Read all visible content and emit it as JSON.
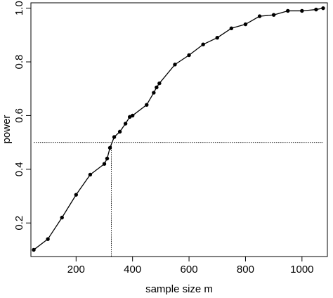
{
  "chart_data": {
    "type": "line",
    "title": "",
    "xlabel": "sample size m",
    "ylabel": "power",
    "xlim": [
      40,
      1090
    ],
    "ylim": [
      0.075,
      1.02
    ],
    "xticks": [
      200,
      400,
      600,
      800,
      1000
    ],
    "xtick_labels": [
      "200",
      "400",
      "600",
      "800",
      "1000"
    ],
    "yticks": [
      0.2,
      0.4,
      0.6,
      0.8,
      1.0
    ],
    "ytick_labels": [
      "0.2",
      "0.4",
      "0.6",
      "0.8",
      "1.0"
    ],
    "grid": false,
    "legend": "none",
    "series": [
      {
        "color": "#000000",
        "marker": "filled-circle",
        "x": [
          50,
          100,
          150,
          200,
          250,
          300,
          310,
          320,
          335,
          355,
          375,
          390,
          400,
          450,
          475,
          485,
          495,
          550,
          600,
          650,
          700,
          750,
          800,
          850,
          900,
          950,
          1000,
          1050,
          1075
        ],
        "y": [
          0.1,
          0.14,
          0.22,
          0.305,
          0.38,
          0.42,
          0.44,
          0.48,
          0.52,
          0.54,
          0.57,
          0.595,
          0.6,
          0.64,
          0.685,
          0.705,
          0.72,
          0.79,
          0.825,
          0.865,
          0.89,
          0.925,
          0.94,
          0.97,
          0.975,
          0.99,
          0.99,
          0.995,
          1.0
        ]
      }
    ],
    "reference_lines": [
      {
        "orientation": "horizontal",
        "value": 0.5,
        "from": 50,
        "to": 1075,
        "style": "dotted"
      },
      {
        "orientation": "vertical",
        "value": 325,
        "from": 0.075,
        "to": 0.5,
        "style": "dotted"
      }
    ]
  }
}
